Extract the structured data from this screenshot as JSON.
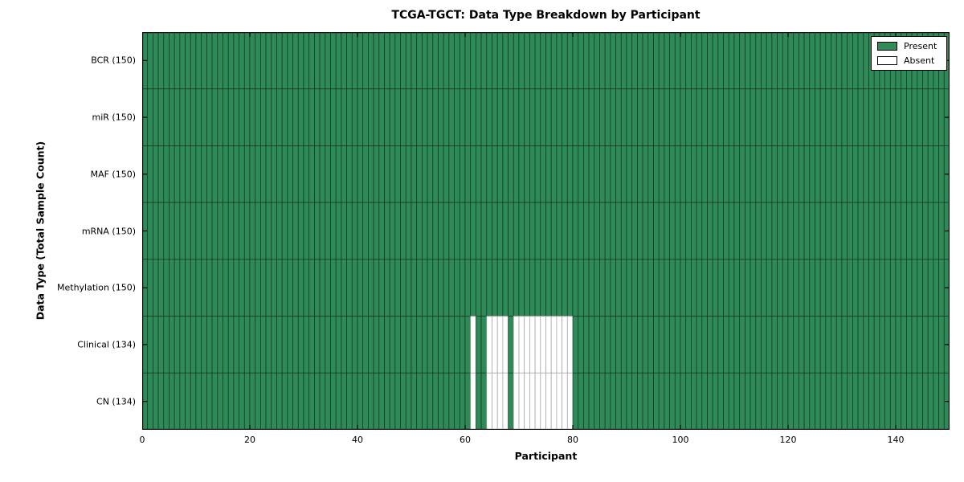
{
  "figure": {
    "title": "TCGA-TGCT: Data Type Breakdown by Participant"
  },
  "chart_data": {
    "type": "heatmap",
    "title": "TCGA-TGCT: Data Type Breakdown by Participant",
    "xlabel": "Participant",
    "ylabel": "Data Type (Total Sample Count)",
    "xlim": [
      0,
      150
    ],
    "n_participants": 150,
    "x_ticks": [
      0,
      20,
      40,
      60,
      80,
      100,
      120,
      140
    ],
    "grid": false,
    "legend_position": "upper right",
    "present_color": "#2e8b57",
    "absent_color": "#ffffff",
    "present_cell_border": "rgba(0,0,0,0.5)",
    "absent_cell_border": "#a8a8a8",
    "legend": [
      {
        "label": "Present",
        "color": "#2e8b57"
      },
      {
        "label": "Absent",
        "color": "#ffffff"
      }
    ],
    "rows": [
      {
        "label": "BCR (150)",
        "name": "BCR",
        "total": 150,
        "absent": []
      },
      {
        "label": "miR (150)",
        "name": "miR",
        "total": 150,
        "absent": []
      },
      {
        "label": "MAF (150)",
        "name": "MAF",
        "total": 150,
        "absent": []
      },
      {
        "label": "mRNA (150)",
        "name": "mRNA",
        "total": 150,
        "absent": []
      },
      {
        "label": "Methylation (150)",
        "name": "Methylation",
        "total": 150,
        "absent": []
      },
      {
        "label": "Clinical (134)",
        "name": "Clinical",
        "total": 134,
        "absent": [
          61,
          64,
          65,
          66,
          67,
          69,
          70,
          71,
          72,
          73,
          74,
          75,
          76,
          77,
          78,
          79
        ]
      },
      {
        "label": "CN (134)",
        "name": "CN",
        "total": 134,
        "absent": [
          61,
          64,
          65,
          66,
          67,
          69,
          70,
          71,
          72,
          73,
          74,
          75,
          76,
          77,
          78,
          79
        ]
      }
    ]
  }
}
